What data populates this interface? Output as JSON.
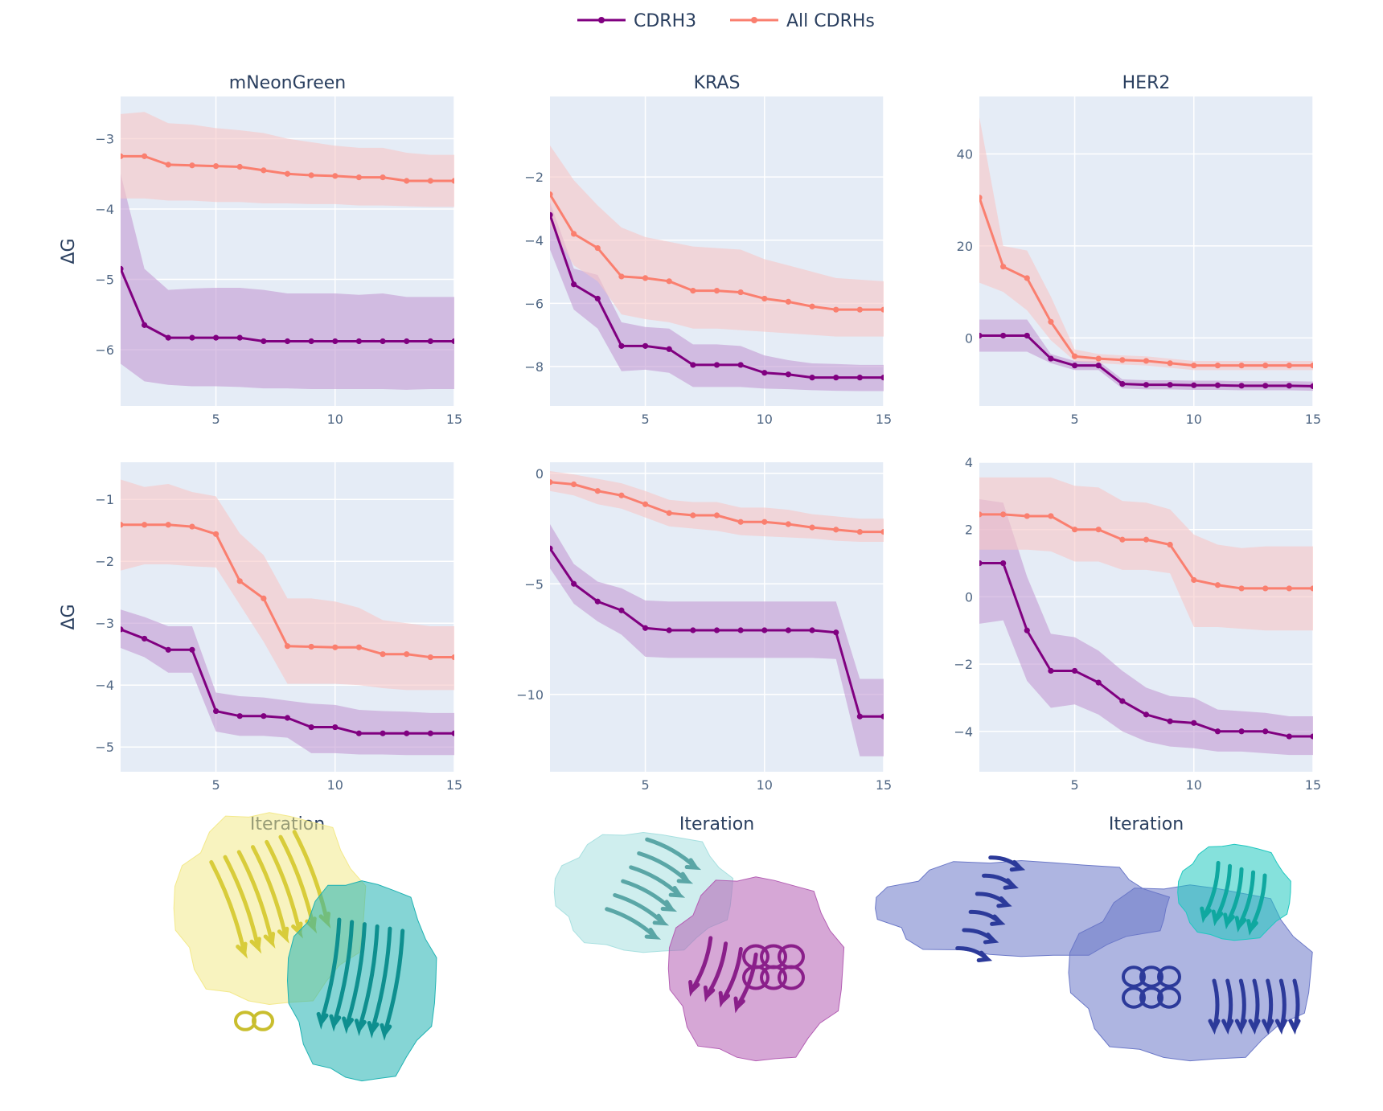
{
  "legend": [
    {
      "name": "CDRH3",
      "color": "#800080"
    },
    {
      "name": "All CDRHs",
      "color": "#fa7f6f"
    }
  ],
  "axis_titles": {
    "y": "ΔG",
    "x": "Iteration"
  },
  "colors": {
    "plot_background": "#e5ecf6",
    "grid": "#ffffff",
    "cdrh3_band": "#c39bd3",
    "all_band": "#f7c6c7"
  },
  "structures": [
    {
      "name": "mNeonGreen-complex-structure",
      "colors": [
        "#f3e98a",
        "#20b3b3"
      ]
    },
    {
      "name": "KRAS-complex-structure",
      "colors": [
        "#a8e0e0",
        "#b45fb4"
      ]
    },
    {
      "name": "HER2-complex-structure",
      "colors": [
        "#6b78c8",
        "#20c8c0"
      ]
    }
  ],
  "chart_data": [
    {
      "type": "line",
      "title": "mNeonGreen",
      "row": 1,
      "col": 1,
      "xlabel": "",
      "ylabel": "ΔG",
      "xlim": [
        1,
        15
      ],
      "ylim": [
        -6.8,
        -2.4
      ],
      "xticks": [
        5,
        10,
        15
      ],
      "yticks": [
        -6,
        -5,
        -4,
        -3
      ],
      "x": [
        1,
        2,
        3,
        4,
        5,
        6,
        7,
        8,
        9,
        10,
        11,
        12,
        13,
        14,
        15
      ],
      "series": [
        {
          "name": "CDRH3",
          "values": [
            -4.85,
            -5.65,
            -5.83,
            -5.83,
            -5.83,
            -5.83,
            -5.88,
            -5.88,
            -5.88,
            -5.88,
            -5.88,
            -5.88,
            -5.88,
            -5.88,
            -5.88
          ],
          "lower": [
            -6.2,
            -6.45,
            -6.5,
            -6.52,
            -6.52,
            -6.53,
            -6.55,
            -6.55,
            -6.56,
            -6.56,
            -6.56,
            -6.56,
            -6.57,
            -6.56,
            -6.56
          ],
          "upper": [
            -3.5,
            -4.85,
            -5.15,
            -5.13,
            -5.12,
            -5.12,
            -5.15,
            -5.2,
            -5.2,
            -5.2,
            -5.22,
            -5.2,
            -5.25,
            -5.25,
            -5.25
          ]
        },
        {
          "name": "All CDRHs",
          "values": [
            -3.25,
            -3.25,
            -3.37,
            -3.38,
            -3.39,
            -3.4,
            -3.45,
            -3.5,
            -3.52,
            -3.53,
            -3.55,
            -3.55,
            -3.6,
            -3.6,
            -3.6
          ],
          "lower": [
            -3.85,
            -3.85,
            -3.88,
            -3.88,
            -3.9,
            -3.9,
            -3.92,
            -3.92,
            -3.93,
            -3.93,
            -3.95,
            -3.95,
            -3.96,
            -3.97,
            -3.97
          ],
          "upper": [
            -2.65,
            -2.62,
            -2.78,
            -2.8,
            -2.85,
            -2.88,
            -2.92,
            -3.0,
            -3.05,
            -3.1,
            -3.13,
            -3.13,
            -3.2,
            -3.23,
            -3.23
          ]
        }
      ]
    },
    {
      "type": "line",
      "title": "KRAS",
      "row": 1,
      "col": 2,
      "xlabel": "",
      "ylabel": "",
      "xlim": [
        1,
        15
      ],
      "ylim": [
        -9.25,
        0.55
      ],
      "xticks": [
        5,
        10,
        15
      ],
      "yticks": [
        -8,
        -6,
        -4,
        -2
      ],
      "x": [
        1,
        2,
        3,
        4,
        5,
        6,
        7,
        8,
        9,
        10,
        11,
        12,
        13,
        14,
        15
      ],
      "series": [
        {
          "name": "CDRH3",
          "values": [
            -3.2,
            -5.4,
            -5.85,
            -7.35,
            -7.35,
            -7.45,
            -7.95,
            -7.95,
            -7.95,
            -8.2,
            -8.25,
            -8.35,
            -8.35,
            -8.35,
            -8.35
          ],
          "lower": [
            -4.3,
            -6.2,
            -6.8,
            -8.15,
            -8.1,
            -8.2,
            -8.65,
            -8.65,
            -8.65,
            -8.7,
            -8.72,
            -8.75,
            -8.77,
            -8.78,
            -8.78
          ],
          "upper": [
            -2.8,
            -4.9,
            -5.1,
            -6.6,
            -6.75,
            -6.8,
            -7.3,
            -7.3,
            -7.35,
            -7.65,
            -7.8,
            -7.9,
            -7.92,
            -7.95,
            -7.95
          ]
        },
        {
          "name": "All CDRHs",
          "values": [
            -2.55,
            -3.8,
            -4.25,
            -5.15,
            -5.2,
            -5.3,
            -5.6,
            -5.6,
            -5.65,
            -5.85,
            -5.95,
            -6.1,
            -6.2,
            -6.2,
            -6.2
          ],
          "lower": [
            -3.5,
            -4.8,
            -5.3,
            -6.35,
            -6.5,
            -6.6,
            -6.8,
            -6.8,
            -6.85,
            -6.9,
            -6.95,
            -7.0,
            -7.05,
            -7.05,
            -7.05
          ],
          "upper": [
            -1.0,
            -2.1,
            -2.9,
            -3.6,
            -3.9,
            -4.05,
            -4.2,
            -4.25,
            -4.3,
            -4.6,
            -4.8,
            -5.0,
            -5.2,
            -5.25,
            -5.3
          ]
        }
      ]
    },
    {
      "type": "line",
      "title": "HER2",
      "row": 1,
      "col": 3,
      "xlabel": "",
      "ylabel": "",
      "xlim": [
        1,
        15
      ],
      "ylim": [
        -14.8,
        52.5
      ],
      "xticks": [
        5,
        10,
        15
      ],
      "yticks": [
        0,
        20,
        40
      ],
      "x": [
        1,
        2,
        3,
        4,
        5,
        6,
        7,
        8,
        9,
        10,
        11,
        12,
        13,
        14,
        15
      ],
      "series": [
        {
          "name": "CDRH3",
          "values": [
            0.5,
            0.5,
            0.5,
            -4.5,
            -6.0,
            -6.0,
            -10.0,
            -10.2,
            -10.2,
            -10.3,
            -10.3,
            -10.4,
            -10.4,
            -10.4,
            -10.5
          ],
          "lower": [
            -3.0,
            -3.0,
            -3.0,
            -5.5,
            -7.0,
            -7.0,
            -11.0,
            -11.2,
            -11.2,
            -11.3,
            -11.3,
            -11.4,
            -11.4,
            -11.4,
            -11.5
          ],
          "upper": [
            4.0,
            4.0,
            4.0,
            -3.5,
            -5.0,
            -5.0,
            -9.0,
            -9.2,
            -9.2,
            -9.3,
            -9.3,
            -9.4,
            -9.4,
            -9.4,
            -9.5
          ]
        },
        {
          "name": "All CDRHs",
          "values": [
            30.5,
            15.5,
            13.0,
            3.5,
            -4.0,
            -4.5,
            -4.8,
            -5.0,
            -5.5,
            -6.0,
            -6.0,
            -6.0,
            -6.0,
            -6.0,
            -6.0
          ],
          "lower": [
            12.0,
            10.0,
            6.0,
            -0.5,
            -5.0,
            -5.5,
            -5.8,
            -6.0,
            -6.5,
            -7.0,
            -7.0,
            -7.0,
            -7.0,
            -7.0,
            -7.0
          ],
          "upper": [
            48.0,
            20.0,
            19.0,
            9.0,
            -2.5,
            -3.5,
            -3.8,
            -4.0,
            -4.5,
            -5.0,
            -5.0,
            -5.0,
            -5.0,
            -5.0,
            -5.0
          ]
        }
      ]
    },
    {
      "type": "line",
      "title": "",
      "row": 2,
      "col": 1,
      "xlabel": "Iteration",
      "ylabel": "ΔG",
      "xlim": [
        1,
        15
      ],
      "ylim": [
        -5.4,
        -0.4
      ],
      "xticks": [
        5,
        10,
        15
      ],
      "yticks": [
        -5,
        -4,
        -3,
        -2,
        -1
      ],
      "x": [
        1,
        2,
        3,
        4,
        5,
        6,
        7,
        8,
        9,
        10,
        11,
        12,
        13,
        14,
        15
      ],
      "series": [
        {
          "name": "CDRH3",
          "values": [
            -3.1,
            -3.25,
            -3.43,
            -3.43,
            -4.42,
            -4.5,
            -4.5,
            -4.53,
            -4.68,
            -4.68,
            -4.78,
            -4.78,
            -4.78,
            -4.78,
            -4.78
          ],
          "lower": [
            -3.4,
            -3.55,
            -3.8,
            -3.8,
            -4.75,
            -4.82,
            -4.82,
            -4.85,
            -5.1,
            -5.1,
            -5.12,
            -5.12,
            -5.13,
            -5.13,
            -5.13
          ],
          "upper": [
            -2.78,
            -2.9,
            -3.05,
            -3.05,
            -4.12,
            -4.18,
            -4.2,
            -4.25,
            -4.3,
            -4.32,
            -4.4,
            -4.42,
            -4.43,
            -4.45,
            -4.45
          ]
        },
        {
          "name": "All CDRHs",
          "values": [
            -1.41,
            -1.41,
            -1.41,
            -1.44,
            -1.56,
            -2.32,
            -2.6,
            -3.37,
            -3.38,
            -3.39,
            -3.39,
            -3.5,
            -3.5,
            -3.55,
            -3.55
          ],
          "lower": [
            -2.15,
            -2.05,
            -2.05,
            -2.08,
            -2.1,
            -2.7,
            -3.3,
            -3.98,
            -3.98,
            -3.98,
            -4.0,
            -4.05,
            -4.08,
            -4.08,
            -4.08
          ],
          "upper": [
            -0.68,
            -0.8,
            -0.75,
            -0.88,
            -0.95,
            -1.55,
            -1.9,
            -2.6,
            -2.6,
            -2.65,
            -2.75,
            -2.95,
            -3.0,
            -3.05,
            -3.05
          ]
        }
      ]
    },
    {
      "type": "line",
      "title": "",
      "row": 2,
      "col": 2,
      "xlabel": "Iteration",
      "ylabel": "",
      "xlim": [
        1,
        15
      ],
      "ylim": [
        -13.5,
        0.5
      ],
      "xticks": [
        5,
        10,
        15
      ],
      "yticks": [
        -10,
        -5,
        0
      ],
      "x": [
        1,
        2,
        3,
        4,
        5,
        6,
        7,
        8,
        9,
        10,
        11,
        12,
        13,
        14,
        15
      ],
      "series": [
        {
          "name": "CDRH3",
          "values": [
            -3.4,
            -5.0,
            -5.8,
            -6.2,
            -7.0,
            -7.1,
            -7.1,
            -7.1,
            -7.1,
            -7.1,
            -7.1,
            -7.1,
            -7.2,
            -11.0,
            -11.0
          ],
          "lower": [
            -4.3,
            -5.9,
            -6.7,
            -7.3,
            -8.3,
            -8.35,
            -8.35,
            -8.35,
            -8.35,
            -8.35,
            -8.35,
            -8.35,
            -8.4,
            -12.8,
            -12.8
          ],
          "upper": [
            -2.3,
            -4.1,
            -4.9,
            -5.2,
            -5.75,
            -5.8,
            -5.8,
            -5.8,
            -5.8,
            -5.8,
            -5.8,
            -5.8,
            -5.8,
            -9.3,
            -9.3
          ]
        },
        {
          "name": "All CDRHs",
          "values": [
            -0.4,
            -0.5,
            -0.8,
            -1.0,
            -1.4,
            -1.8,
            -1.9,
            -1.9,
            -2.2,
            -2.2,
            -2.3,
            -2.45,
            -2.55,
            -2.65,
            -2.65
          ],
          "lower": [
            -0.8,
            -1.0,
            -1.4,
            -1.6,
            -2.0,
            -2.4,
            -2.5,
            -2.6,
            -2.8,
            -2.85,
            -2.9,
            -2.95,
            -3.05,
            -3.1,
            -3.1
          ],
          "upper": [
            0.1,
            -0.05,
            -0.25,
            -0.45,
            -0.8,
            -1.2,
            -1.3,
            -1.3,
            -1.55,
            -1.55,
            -1.65,
            -1.85,
            -1.95,
            -2.05,
            -2.05
          ]
        }
      ]
    },
    {
      "type": "line",
      "title": "",
      "row": 2,
      "col": 3,
      "xlabel": "Iteration",
      "ylabel": "",
      "xlim": [
        1,
        15
      ],
      "ylim": [
        -5.2,
        4.0
      ],
      "xticks": [
        5,
        10,
        15
      ],
      "yticks": [
        -4,
        -2,
        0,
        2,
        4
      ],
      "x": [
        1,
        2,
        3,
        4,
        5,
        6,
        7,
        8,
        9,
        10,
        11,
        12,
        13,
        14,
        15
      ],
      "series": [
        {
          "name": "CDRH3",
          "values": [
            1.0,
            1.0,
            -1.0,
            -2.2,
            -2.2,
            -2.55,
            -3.1,
            -3.5,
            -3.7,
            -3.75,
            -4.0,
            -4.0,
            -4.0,
            -4.15,
            -4.15
          ],
          "lower": [
            -0.8,
            -0.7,
            -2.5,
            -3.3,
            -3.2,
            -3.5,
            -4.0,
            -4.3,
            -4.45,
            -4.5,
            -4.6,
            -4.6,
            -4.65,
            -4.7,
            -4.7
          ],
          "upper": [
            2.9,
            2.8,
            0.6,
            -1.1,
            -1.2,
            -1.6,
            -2.2,
            -2.7,
            -2.95,
            -3.0,
            -3.35,
            -3.4,
            -3.45,
            -3.55,
            -3.55
          ]
        },
        {
          "name": "All CDRHs",
          "values": [
            2.45,
            2.45,
            2.4,
            2.4,
            2.0,
            2.0,
            1.7,
            1.7,
            1.55,
            0.5,
            0.35,
            0.25,
            0.25,
            0.25,
            0.25
          ],
          "lower": [
            1.4,
            1.4,
            1.4,
            1.35,
            1.05,
            1.05,
            0.8,
            0.8,
            0.7,
            -0.9,
            -0.9,
            -0.95,
            -1.0,
            -1.0,
            -1.0
          ],
          "upper": [
            3.55,
            3.55,
            3.55,
            3.55,
            3.3,
            3.25,
            2.85,
            2.8,
            2.6,
            1.85,
            1.55,
            1.45,
            1.5,
            1.5,
            1.5
          ]
        }
      ]
    }
  ]
}
